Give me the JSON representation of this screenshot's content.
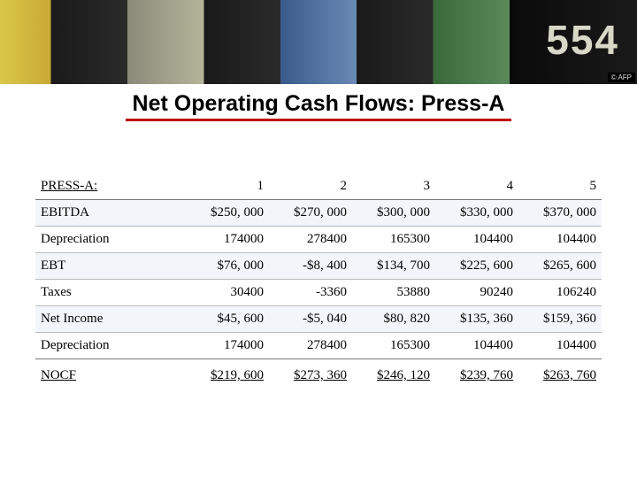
{
  "banner": {
    "attribution": "© AFP"
  },
  "title": "Net Operating Cash Flows: Press-A",
  "table": {
    "type": "table",
    "header_label": "PRESS-A:",
    "col_headers": [
      "1",
      "2",
      "3",
      "4",
      "5"
    ],
    "rows": [
      {
        "label": "EBITDA",
        "values": [
          "$250, 000",
          "$270, 000",
          "$300, 000",
          "$330, 000",
          "$370, 000"
        ]
      },
      {
        "label": "Depreciation",
        "values": [
          "174000",
          "278400",
          "165300",
          "104400",
          "104400"
        ]
      },
      {
        "label": "EBT",
        "values": [
          "$76, 000",
          "-$8, 400",
          "$134, 700",
          "$225, 600",
          "$265, 600"
        ]
      },
      {
        "label": "Taxes",
        "values": [
          "30400",
          "-3360",
          "53880",
          "90240",
          "106240"
        ]
      },
      {
        "label": "Net Income",
        "values": [
          "$45, 600",
          "-$5, 040",
          "$80, 820",
          "$135, 360",
          "$159, 360"
        ]
      },
      {
        "label": "Depreciation",
        "values": [
          "174000",
          "278400",
          "165300",
          "104400",
          "104400"
        ]
      }
    ],
    "footer": {
      "label": "NOCF",
      "values": [
        "$219, 600",
        "$273, 360",
        "$246, 120",
        "$239, 760",
        "$263, 760"
      ]
    },
    "colors": {
      "row_stripe": "#f2f6fb",
      "row_plain": "#ffffff",
      "rule": "#bbbbbb",
      "header_rule": "#777777",
      "title_underline": "#c00000"
    },
    "font": {
      "body_size_pt": 11,
      "title_size_pt": 19,
      "family": "Georgia / Arial"
    }
  }
}
